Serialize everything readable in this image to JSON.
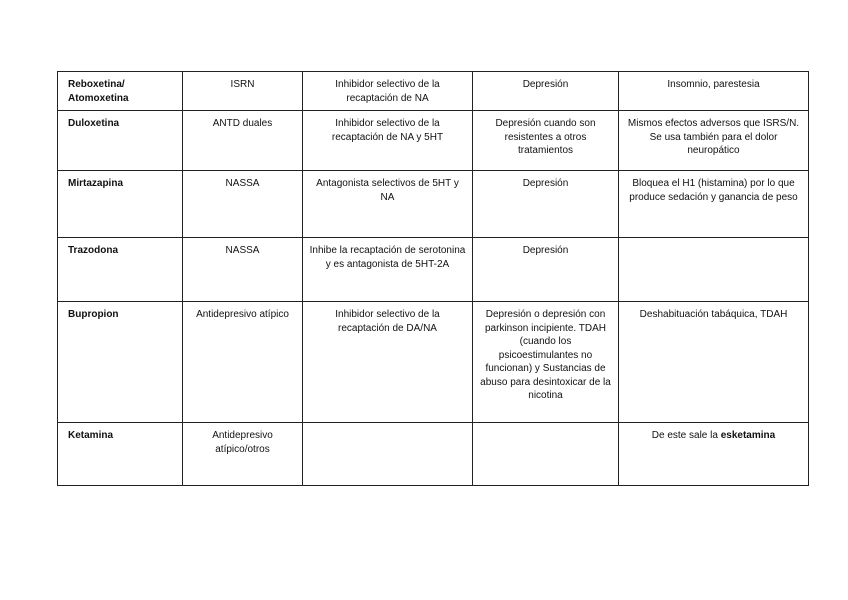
{
  "rows": [
    {
      "name": "Reboxetina/ Atomoxetina",
      "clase": "ISRN",
      "mecanismo": "Inhibidor selectivo de la recaptación de NA",
      "indicacion": "Depresión",
      "efectos": "Insomnio, parestesia"
    },
    {
      "name": "Duloxetina",
      "clase": "ANTD duales",
      "mecanismo": "Inhibidor selectivo de la recaptación de NA y 5HT",
      "indicacion": "Depresión cuando son resistentes a otros tratamientos",
      "efectos": "Mismos efectos adversos que ISRS/N. Se usa también para el dolor neuropático"
    },
    {
      "name": "Mirtazapina",
      "clase": "NASSA",
      "mecanismo": "Antagonista selectivos de 5HT y NA",
      "indicacion": "Depresión",
      "efectos": "Bloquea el H1 (histamina) por lo que produce sedación y ganancia de peso"
    },
    {
      "name": "Trazodona",
      "clase": "NASSA",
      "mecanismo": "Inhibe la recaptación de serotonina y es antagonista de 5HT-2A",
      "indicacion": "Depresión",
      "efectos": ""
    },
    {
      "name": "Bupropion",
      "clase": "Antidepresivo atípico",
      "mecanismo": "Inhibidor selectivo de la recaptación de DA/NA",
      "indicacion": "Depresión o depresión con parkinson incipiente. TDAH (cuando los psicoestimulantes no funcionan) y Sustancias de abuso para desintoxicar de la nicotina",
      "efectos": "Deshabituación tabáquica, TDAH"
    },
    {
      "name": "Ketamina",
      "clase": "Antidepresivo atípico/otros",
      "mecanismo": "",
      "indicacion": "",
      "efectos_prefix": "De este sale la ",
      "efectos_bold": "esketamina"
    }
  ]
}
